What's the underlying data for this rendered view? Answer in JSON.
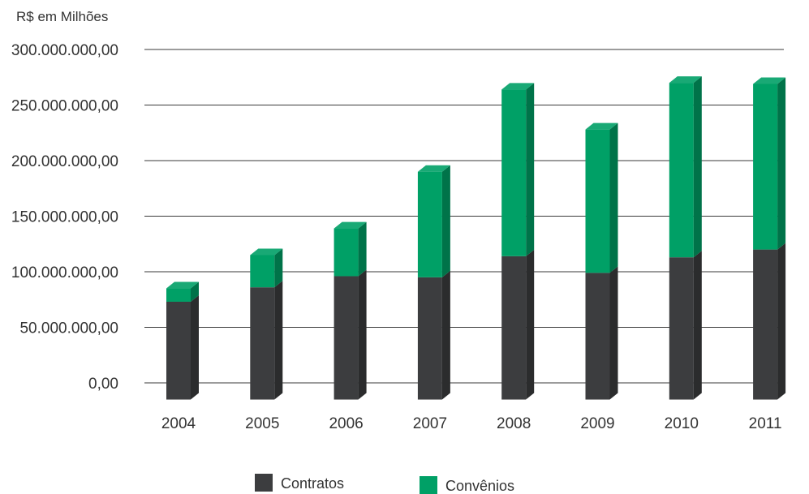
{
  "chart_data": {
    "type": "bar",
    "stacked": true,
    "style": "3d",
    "unit_label": "R$ em Milhões",
    "categories": [
      "2004",
      "2005",
      "2006",
      "2007",
      "2008",
      "2009",
      "2010",
      "2011"
    ],
    "series": [
      {
        "name": "Contratos",
        "color": "#3c3d3f",
        "values": [
          73000000,
          86000000,
          96000000,
          95000000,
          114000000,
          99000000,
          113000000,
          120000000
        ]
      },
      {
        "name": "Convênios",
        "color": "#00a066",
        "values": [
          12000000,
          29000000,
          43000000,
          95000000,
          150000000,
          129000000,
          157000000,
          149000000
        ]
      }
    ],
    "yaxis": {
      "ticks": [
        0,
        50000000,
        100000000,
        150000000,
        200000000,
        250000000,
        300000000
      ],
      "tick_labels": [
        "0,00",
        "50.000.000,00",
        "100.000.000,00",
        "150.000.000,00",
        "200.000.000,00",
        "250.000.000,00",
        "300.000.000,00"
      ],
      "ylim": [
        -15000000,
        300000000
      ]
    },
    "grid": true,
    "legend_position": "bottom-center"
  }
}
